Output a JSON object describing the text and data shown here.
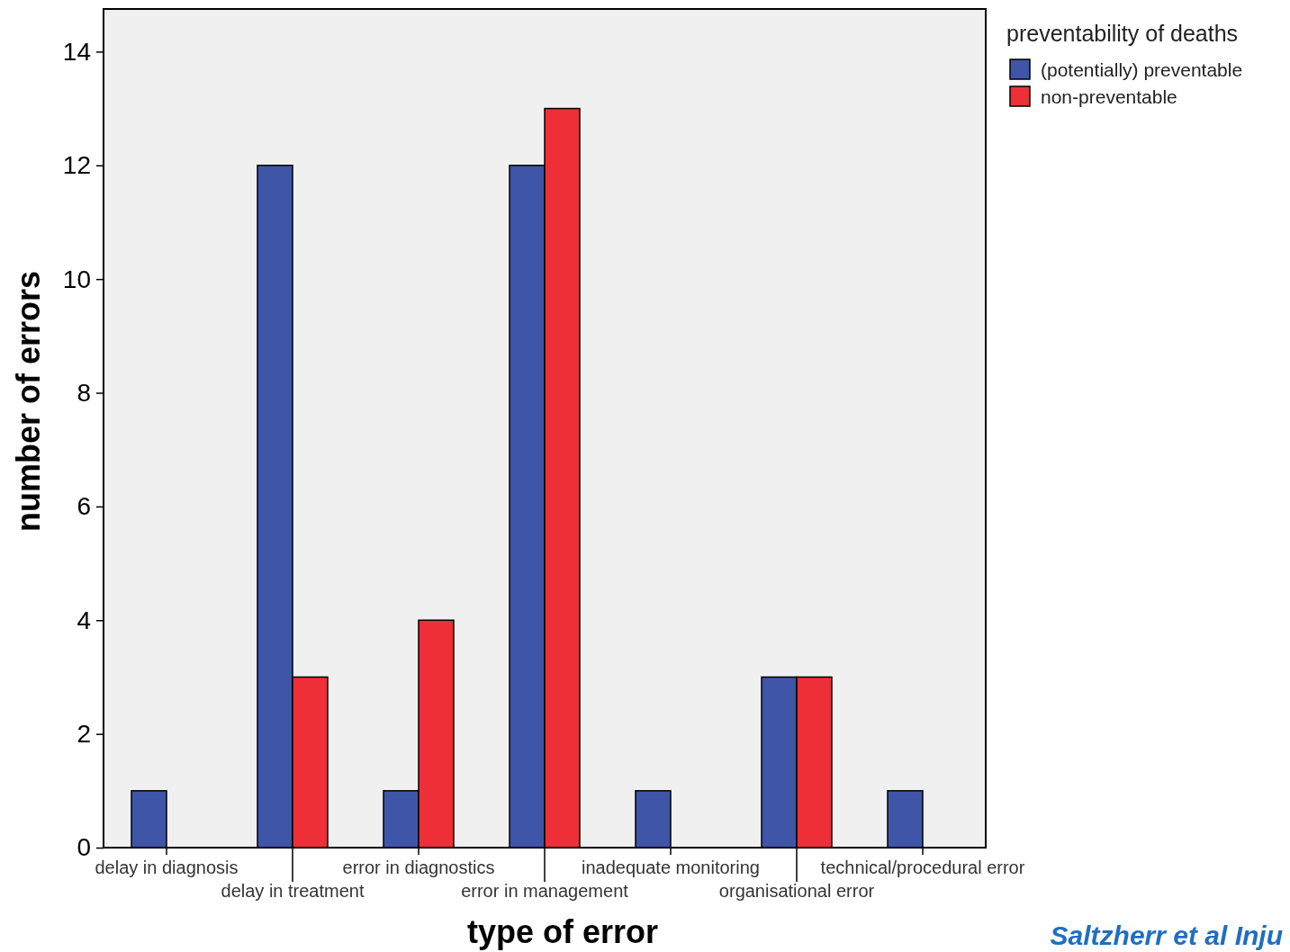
{
  "chart_data": {
    "type": "bar",
    "xlabel": "type of error",
    "ylabel": "number of errors",
    "legend_title": "preventability of deaths",
    "categories": [
      "delay in diagnosis",
      "delay in treatment",
      "error in diagnostics",
      "error in management",
      "inadequate monitoring",
      "organisational error",
      "technical/procedural error"
    ],
    "series": [
      {
        "name": "(potentially) preventable",
        "color": "#3f55a8",
        "values": [
          1,
          12,
          1,
          12,
          1,
          3,
          1
        ]
      },
      {
        "name": "non-preventable",
        "color": "#ee2f38",
        "values": [
          null,
          3,
          4,
          13,
          null,
          3,
          null
        ]
      }
    ],
    "ylim": [
      0,
      14.75
    ],
    "yticks": [
      0,
      2,
      4,
      6,
      8,
      10,
      12,
      14
    ],
    "grid": false,
    "legend": "top right",
    "annotations": [
      "Saltzherr et al Inju"
    ]
  }
}
